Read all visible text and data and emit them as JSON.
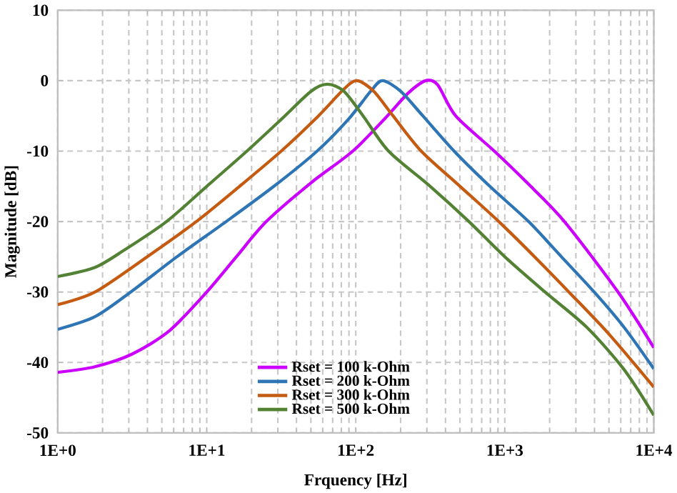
{
  "chart_data": {
    "type": "line",
    "xlabel": "Frquency [Hz]",
    "ylabel": "Magnitude [dB]",
    "log": "x",
    "xlim": [
      1,
      10000
    ],
    "ylim": [
      -50,
      10
    ],
    "xticks": [
      {
        "value": 1,
        "label": "1E+0"
      },
      {
        "value": 10,
        "label": "1E+1"
      },
      {
        "value": 100,
        "label": "1E+2"
      },
      {
        "value": 1000,
        "label": "1E+3"
      },
      {
        "value": 10000,
        "label": "1E+4"
      }
    ],
    "yticks": [
      -50,
      -40,
      -30,
      -20,
      -10,
      0,
      10
    ],
    "grid": true,
    "legend": "bottom",
    "marker": "none",
    "line_style": "solid",
    "series": [
      {
        "name": "Rset = 100 k-Ohm",
        "color": "#cc00ff",
        "x": [
          1,
          1.78,
          3.16,
          5.62,
          10,
          15.8,
          25.1,
          50.1,
          95.5,
          158,
          224,
          295,
          355,
          468,
          851,
          1413,
          2512,
          5754,
          10000
        ],
        "values": [
          -41.4,
          -40.6,
          -38.8,
          -35.5,
          -30,
          -25,
          -20,
          -14.5,
          -10,
          -5.3,
          -1.8,
          0,
          -0.6,
          -5,
          -10,
          -14.5,
          -20,
          -30,
          -37.9
        ]
      },
      {
        "name": "Rset = 200 k-Ohm",
        "color": "#2e75b6",
        "x": [
          1,
          1.78,
          3.09,
          6.31,
          13.5,
          28.2,
          55,
          89.1,
          126,
          151,
          200,
          282,
          457,
          794,
          1445,
          2399,
          3981,
          6310,
          10000
        ],
        "values": [
          -35.3,
          -33.5,
          -30,
          -25,
          -20,
          -15,
          -10,
          -5.5,
          -1.5,
          0,
          -1.5,
          -5,
          -10,
          -15,
          -20,
          -25,
          -30,
          -35,
          -40.9
        ]
      },
      {
        "name": "Rset = 300 k-Ohm",
        "color": "#c55a11",
        "x": [
          1,
          1.78,
          3.98,
          8.51,
          16.6,
          31.6,
          56.2,
          83.2,
          102,
          132,
          178,
          275,
          501,
          912,
          1585,
          2692,
          5012,
          10000
        ],
        "values": [
          -31.8,
          -30,
          -25,
          -20,
          -15,
          -10,
          -5,
          -1.2,
          0,
          -1.5,
          -5,
          -10,
          -15,
          -20,
          -25,
          -30,
          -36,
          -43.5
        ]
      },
      {
        "name": "Rset = 500 k-Ohm",
        "color": "#548235",
        "x": [
          1,
          1.78,
          2.82,
          5.37,
          10,
          18.6,
          31.6,
          50.1,
          64.6,
          83.2,
          112,
          166,
          316,
          575,
          1000,
          1862,
          3548,
          6310,
          10000
        ],
        "values": [
          -27.8,
          -26.5,
          -24,
          -20,
          -15,
          -10,
          -5.5,
          -1.5,
          -0.5,
          -1.5,
          -5,
          -10,
          -15,
          -20,
          -25,
          -30,
          -35,
          -41,
          -47.5
        ]
      }
    ]
  }
}
